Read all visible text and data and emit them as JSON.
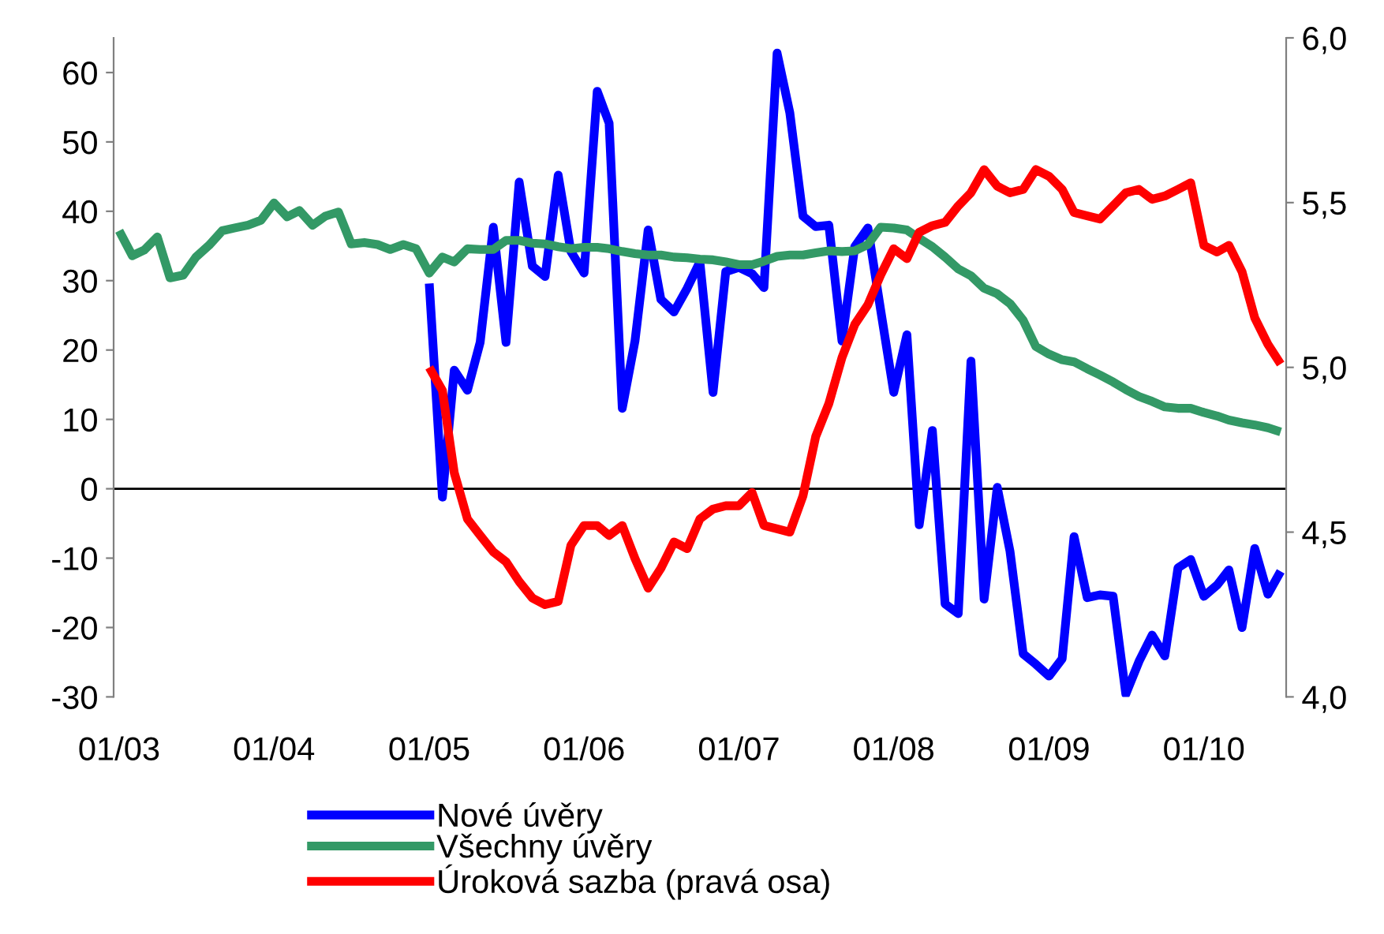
{
  "chart_data": {
    "type": "line",
    "x": [
      "2003-01",
      "2003-02",
      "2003-03",
      "2003-04",
      "2003-05",
      "2003-06",
      "2003-07",
      "2003-08",
      "2003-09",
      "2003-10",
      "2003-11",
      "2003-12",
      "2004-01",
      "2004-02",
      "2004-03",
      "2004-04",
      "2004-05",
      "2004-06",
      "2004-07",
      "2004-08",
      "2004-09",
      "2004-10",
      "2004-11",
      "2004-12",
      "2005-01",
      "2005-02",
      "2005-03",
      "2005-04",
      "2005-05",
      "2005-06",
      "2005-07",
      "2005-08",
      "2005-09",
      "2005-10",
      "2005-11",
      "2005-12",
      "2006-01",
      "2006-02",
      "2006-03",
      "2006-04",
      "2006-05",
      "2006-06",
      "2006-07",
      "2006-08",
      "2006-09",
      "2006-10",
      "2006-11",
      "2006-12",
      "2007-01",
      "2007-02",
      "2007-03",
      "2007-04",
      "2007-05",
      "2007-06",
      "2007-07",
      "2007-08",
      "2007-09",
      "2007-10",
      "2007-11",
      "2007-12",
      "2008-01",
      "2008-02",
      "2008-03",
      "2008-04",
      "2008-05",
      "2008-06",
      "2008-07",
      "2008-08",
      "2008-09",
      "2008-10",
      "2008-11",
      "2008-12",
      "2009-01",
      "2009-02",
      "2009-03",
      "2009-04",
      "2009-05",
      "2009-06",
      "2009-07",
      "2009-08",
      "2009-09",
      "2009-10",
      "2009-11",
      "2009-12",
      "2010-01",
      "2010-02",
      "2010-03",
      "2010-04",
      "2010-05",
      "2010-06",
      "2010-07"
    ],
    "series": [
      {
        "name": "Nové úvěry",
        "color": "#0000ff",
        "values": [
          null,
          null,
          null,
          null,
          null,
          null,
          null,
          null,
          null,
          null,
          null,
          null,
          null,
          null,
          null,
          null,
          null,
          null,
          null,
          null,
          null,
          null,
          null,
          null,
          29.6,
          -1.2,
          17.1,
          14.2,
          21.1,
          37.7,
          21.1,
          44.2,
          32.1,
          30.6,
          45.2,
          34.2,
          31.1,
          57.3,
          52.7,
          11.6,
          21.3,
          37.3,
          27.3,
          25.5,
          28.9,
          32.7,
          13.9,
          31.3,
          31.9,
          31.0,
          29.0,
          62.8,
          54.2,
          39.3,
          37.8,
          38.0,
          21.3,
          34.9,
          37.6,
          25.8,
          13.9,
          22.2,
          -5.2,
          8.4,
          -16.6,
          -18.0,
          18.4,
          -15.9,
          0.2,
          -9.0,
          -23.8,
          -25.3,
          -27.0,
          -24.5,
          -6.9,
          -15.7,
          -15.3,
          -15.5,
          -29.6,
          -24.9,
          -21.1,
          -24.1,
          -11.4,
          -10.2,
          -15.5,
          -13.9,
          -11.7,
          -20.0,
          -8.6,
          -15.2,
          -11.9
        ]
      },
      {
        "name": "Všechny úvěry",
        "color": "#339966",
        "values": [
          37.2,
          33.6,
          34.4,
          36.3,
          30.4,
          30.8,
          33.4,
          35.1,
          37.2,
          37.6,
          38.0,
          38.7,
          41.2,
          39.2,
          40.1,
          38.0,
          39.3,
          39.9,
          35.3,
          35.5,
          35.2,
          34.5,
          35.2,
          34.6,
          31.1,
          33.4,
          32.7,
          34.6,
          34.5,
          34.5,
          35.8,
          35.8,
          35.4,
          35.3,
          34.9,
          34.6,
          34.8,
          34.8,
          34.6,
          34.2,
          33.9,
          33.7,
          33.7,
          33.4,
          33.3,
          33.1,
          33.0,
          32.7,
          32.3,
          32.3,
          32.8,
          33.5,
          33.7,
          33.7,
          34.0,
          34.3,
          34.2,
          34.3,
          35.2,
          37.7,
          37.6,
          37.3,
          36.1,
          34.9,
          33.4,
          31.7,
          30.7,
          28.9,
          28.1,
          26.7,
          24.3,
          20.5,
          19.4,
          18.6,
          18.3,
          17.3,
          16.4,
          15.4,
          14.3,
          13.3,
          12.6,
          11.8,
          11.6,
          11.6,
          11.0,
          10.5,
          9.9,
          9.5,
          9.2,
          8.8,
          8.2
        ]
      },
      {
        "name": "Úroková sazba (pravá osa)",
        "color": "#ff0000",
        "axis": "y2",
        "values": [
          null,
          null,
          null,
          null,
          null,
          null,
          null,
          null,
          null,
          null,
          null,
          null,
          null,
          null,
          null,
          null,
          null,
          null,
          null,
          null,
          null,
          null,
          null,
          null,
          5.0,
          4.93,
          4.68,
          4.54,
          4.49,
          4.44,
          4.41,
          4.35,
          4.3,
          4.28,
          4.29,
          4.46,
          4.52,
          4.52,
          4.49,
          4.52,
          4.42,
          4.33,
          4.39,
          4.47,
          4.45,
          4.54,
          4.57,
          4.58,
          4.58,
          4.62,
          4.52,
          4.51,
          4.5,
          4.61,
          4.79,
          4.89,
          5.03,
          5.13,
          5.19,
          5.28,
          5.36,
          5.33,
          5.41,
          5.43,
          5.44,
          5.49,
          5.53,
          5.6,
          5.55,
          5.53,
          5.54,
          5.6,
          5.58,
          5.54,
          5.47,
          5.46,
          5.45,
          5.49,
          5.53,
          5.54,
          5.51,
          5.52,
          5.54,
          5.56,
          5.37,
          5.35,
          5.37,
          5.29,
          5.15,
          5.07,
          5.01
        ]
      }
    ],
    "xlim": [
      "2002-12-19",
      "2010-07-14"
    ],
    "xticks": [
      {
        "value": "2003-01",
        "label": "01/03"
      },
      {
        "value": "2004-01",
        "label": "01/04"
      },
      {
        "value": "2005-01",
        "label": "01/05"
      },
      {
        "value": "2006-01",
        "label": "01/06"
      },
      {
        "value": "2007-01",
        "label": "01/07"
      },
      {
        "value": "2008-01",
        "label": "01/08"
      },
      {
        "value": "2009-01",
        "label": "01/09"
      },
      {
        "value": "2010-01",
        "label": "01/10"
      }
    ],
    "ylim": [
      -30,
      65
    ],
    "yticks": [
      -30,
      -20,
      -10,
      0,
      10,
      20,
      30,
      40,
      50,
      60
    ],
    "y2lim": [
      4,
      6
    ],
    "y2ticks": [
      {
        "value": 4.0,
        "label": "4,0"
      },
      {
        "value": 4.5,
        "label": "4,5"
      },
      {
        "value": 5.0,
        "label": "5,0"
      },
      {
        "value": 5.5,
        "label": "5,5"
      },
      {
        "value": 6.0,
        "label": "6,0"
      }
    ],
    "ref_lines": [
      {
        "axis": "y",
        "value": 0,
        "color": "#000000"
      }
    ],
    "legend": "bottom",
    "grid": false,
    "marker": "none",
    "line_style": "solid"
  }
}
